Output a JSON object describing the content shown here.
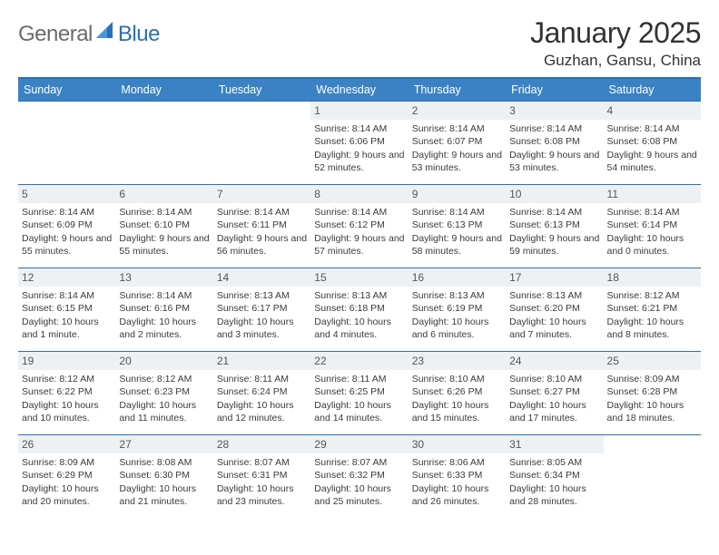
{
  "brand": {
    "part1": "General",
    "part2": "Blue"
  },
  "title": "January 2025",
  "location": "Guzhan, Gansu, China",
  "colors": {
    "header_bg": "#3b82c4",
    "header_border": "#2c6fb3",
    "daynum_bg": "#eef1f4",
    "text": "#333333",
    "logo_gray": "#6b6b6b",
    "logo_blue": "#2c6fb3"
  },
  "week_header": [
    "Sunday",
    "Monday",
    "Tuesday",
    "Wednesday",
    "Thursday",
    "Friday",
    "Saturday"
  ],
  "leading_blanks": 3,
  "days": [
    {
      "n": "1",
      "sunrise": "8:14 AM",
      "sunset": "6:06 PM",
      "daylight": "9 hours and 52 minutes."
    },
    {
      "n": "2",
      "sunrise": "8:14 AM",
      "sunset": "6:07 PM",
      "daylight": "9 hours and 53 minutes."
    },
    {
      "n": "3",
      "sunrise": "8:14 AM",
      "sunset": "6:08 PM",
      "daylight": "9 hours and 53 minutes."
    },
    {
      "n": "4",
      "sunrise": "8:14 AM",
      "sunset": "6:08 PM",
      "daylight": "9 hours and 54 minutes."
    },
    {
      "n": "5",
      "sunrise": "8:14 AM",
      "sunset": "6:09 PM",
      "daylight": "9 hours and 55 minutes."
    },
    {
      "n": "6",
      "sunrise": "8:14 AM",
      "sunset": "6:10 PM",
      "daylight": "9 hours and 55 minutes."
    },
    {
      "n": "7",
      "sunrise": "8:14 AM",
      "sunset": "6:11 PM",
      "daylight": "9 hours and 56 minutes."
    },
    {
      "n": "8",
      "sunrise": "8:14 AM",
      "sunset": "6:12 PM",
      "daylight": "9 hours and 57 minutes."
    },
    {
      "n": "9",
      "sunrise": "8:14 AM",
      "sunset": "6:13 PM",
      "daylight": "9 hours and 58 minutes."
    },
    {
      "n": "10",
      "sunrise": "8:14 AM",
      "sunset": "6:13 PM",
      "daylight": "9 hours and 59 minutes."
    },
    {
      "n": "11",
      "sunrise": "8:14 AM",
      "sunset": "6:14 PM",
      "daylight": "10 hours and 0 minutes."
    },
    {
      "n": "12",
      "sunrise": "8:14 AM",
      "sunset": "6:15 PM",
      "daylight": "10 hours and 1 minute."
    },
    {
      "n": "13",
      "sunrise": "8:14 AM",
      "sunset": "6:16 PM",
      "daylight": "10 hours and 2 minutes."
    },
    {
      "n": "14",
      "sunrise": "8:13 AM",
      "sunset": "6:17 PM",
      "daylight": "10 hours and 3 minutes."
    },
    {
      "n": "15",
      "sunrise": "8:13 AM",
      "sunset": "6:18 PM",
      "daylight": "10 hours and 4 minutes."
    },
    {
      "n": "16",
      "sunrise": "8:13 AM",
      "sunset": "6:19 PM",
      "daylight": "10 hours and 6 minutes."
    },
    {
      "n": "17",
      "sunrise": "8:13 AM",
      "sunset": "6:20 PM",
      "daylight": "10 hours and 7 minutes."
    },
    {
      "n": "18",
      "sunrise": "8:12 AM",
      "sunset": "6:21 PM",
      "daylight": "10 hours and 8 minutes."
    },
    {
      "n": "19",
      "sunrise": "8:12 AM",
      "sunset": "6:22 PM",
      "daylight": "10 hours and 10 minutes."
    },
    {
      "n": "20",
      "sunrise": "8:12 AM",
      "sunset": "6:23 PM",
      "daylight": "10 hours and 11 minutes."
    },
    {
      "n": "21",
      "sunrise": "8:11 AM",
      "sunset": "6:24 PM",
      "daylight": "10 hours and 12 minutes."
    },
    {
      "n": "22",
      "sunrise": "8:11 AM",
      "sunset": "6:25 PM",
      "daylight": "10 hours and 14 minutes."
    },
    {
      "n": "23",
      "sunrise": "8:10 AM",
      "sunset": "6:26 PM",
      "daylight": "10 hours and 15 minutes."
    },
    {
      "n": "24",
      "sunrise": "8:10 AM",
      "sunset": "6:27 PM",
      "daylight": "10 hours and 17 minutes."
    },
    {
      "n": "25",
      "sunrise": "8:09 AM",
      "sunset": "6:28 PM",
      "daylight": "10 hours and 18 minutes."
    },
    {
      "n": "26",
      "sunrise": "8:09 AM",
      "sunset": "6:29 PM",
      "daylight": "10 hours and 20 minutes."
    },
    {
      "n": "27",
      "sunrise": "8:08 AM",
      "sunset": "6:30 PM",
      "daylight": "10 hours and 21 minutes."
    },
    {
      "n": "28",
      "sunrise": "8:07 AM",
      "sunset": "6:31 PM",
      "daylight": "10 hours and 23 minutes."
    },
    {
      "n": "29",
      "sunrise": "8:07 AM",
      "sunset": "6:32 PM",
      "daylight": "10 hours and 25 minutes."
    },
    {
      "n": "30",
      "sunrise": "8:06 AM",
      "sunset": "6:33 PM",
      "daylight": "10 hours and 26 minutes."
    },
    {
      "n": "31",
      "sunrise": "8:05 AM",
      "sunset": "6:34 PM",
      "daylight": "10 hours and 28 minutes."
    }
  ],
  "labels": {
    "sunrise": "Sunrise: ",
    "sunset": "Sunset: ",
    "daylight": "Daylight: "
  }
}
